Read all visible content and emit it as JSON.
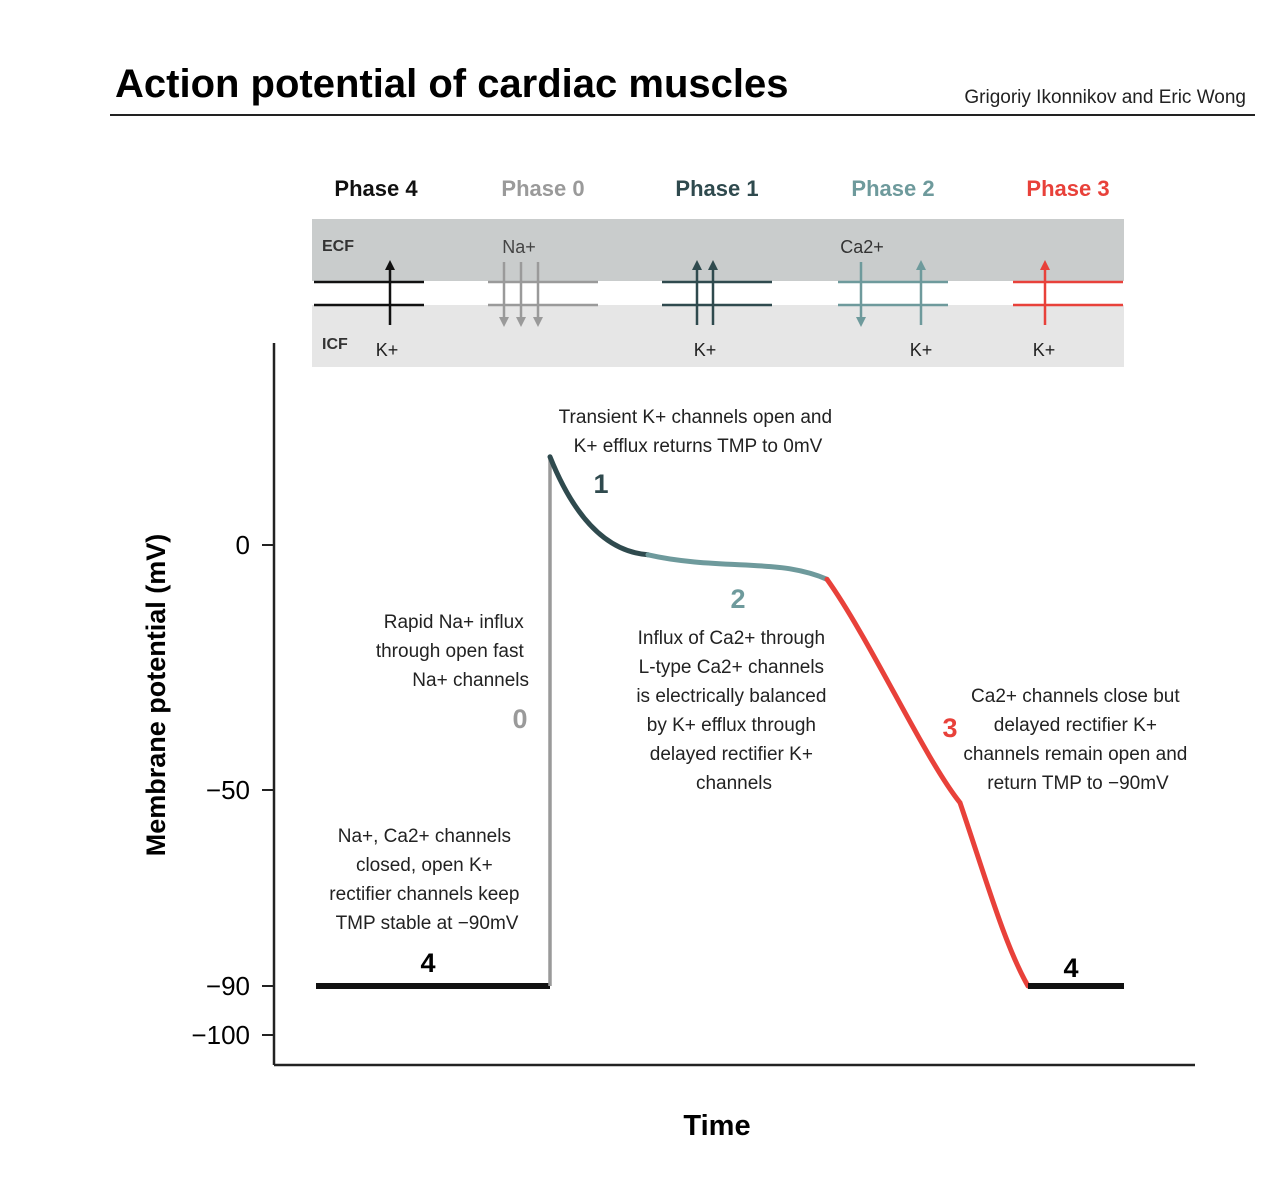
{
  "title": "Action potential of cardiac muscles",
  "authors": "Grigoriy Ikonnikov and Eric Wong",
  "colors": {
    "phase4": "#111111",
    "phase0": "#9a9a9a",
    "phase1": "#2f4a4e",
    "phase2": "#6e9a9c",
    "phase3": "#e8413a",
    "ecf_band": "#c9cccc",
    "icf_band": "#e6e6e6"
  },
  "phases": [
    {
      "label": "Phase 4",
      "top_ion": "",
      "bottom_ion": "K+"
    },
    {
      "label": "Phase 0",
      "top_ion": "Na+",
      "bottom_ion": ""
    },
    {
      "label": "Phase 1",
      "top_ion": "",
      "bottom_ion": "K+"
    },
    {
      "label": "Phase 2",
      "top_ion": "Ca2+",
      "bottom_ion": "K+"
    },
    {
      "label": "Phase 3",
      "top_ion": "",
      "bottom_ion": "K+"
    }
  ],
  "membrane": {
    "outside_label": "ECF",
    "inside_label": "ICF"
  },
  "axes": {
    "ylabel": "Membrane potential (mV)",
    "xlabel": "Time",
    "yticks": [
      0,
      -50,
      -90,
      -100
    ],
    "ytick_labels": [
      "0",
      "−50",
      "−90",
      "−100"
    ]
  },
  "curve": {
    "resting_mV": -90,
    "peak_mV": 18,
    "phase1_end_mV": -2,
    "plateau_end_mV": -7,
    "phase1_icon": "arrow-up-down"
  },
  "annotations": {
    "phase4_left": [
      "Na+, Ca2+ channels",
      "closed, open K+",
      "rectifier channels keep",
      "TMP stable at −90mV"
    ],
    "phase0": [
      "Rapid Na+ influx",
      "through open fast",
      "Na+ channels"
    ],
    "phase1": [
      "Transient K+ channels open and",
      "K+ efflux returns TMP to 0mV"
    ],
    "phase2": [
      "Influx of Ca2+ through",
      "L-type Ca2+ channels",
      "is electrically balanced",
      "by K+ efflux through",
      "delayed rectifier K+",
      "channels"
    ],
    "phase3": [
      "Ca2+ channels close but",
      "delayed rectifier K+",
      "channels remain open and",
      "return TMP to −90mV"
    ]
  },
  "phase_numbers": {
    "p4_left": "4",
    "p0": "0",
    "p1": "1",
    "p2": "2",
    "p3": "3",
    "p4_right": "4"
  }
}
